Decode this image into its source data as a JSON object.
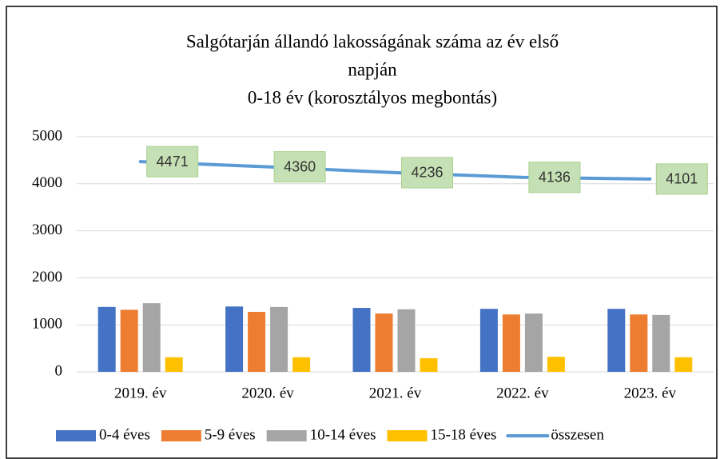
{
  "chart_data": {
    "type": "bar_line",
    "title": [
      "Salgótarján állandó lakosságának száma az év első",
      "napján",
      "0-18 év (korosztályos megbontás)"
    ],
    "categories": [
      "2019. év",
      "2020. év",
      "2021. év",
      "2022. év",
      "2023. év"
    ],
    "series": [
      {
        "name": "0-4 éves",
        "color": "#4472c4",
        "type": "bar",
        "values": [
          1380,
          1390,
          1360,
          1340,
          1340
        ]
      },
      {
        "name": "5-9 éves",
        "color": "#ed7d31",
        "type": "bar",
        "values": [
          1320,
          1275,
          1240,
          1220,
          1220
        ]
      },
      {
        "name": "10-14 éves",
        "color": "#a5a5a5",
        "type": "bar",
        "values": [
          1460,
          1380,
          1330,
          1240,
          1210
        ]
      },
      {
        "name": "15-18 éves",
        "color": "#ffc000",
        "type": "bar",
        "values": [
          310,
          310,
          290,
          320,
          310
        ]
      },
      {
        "name": "összesen",
        "color": "#5b9bd5",
        "type": "line",
        "values": [
          4471,
          4360,
          4236,
          4136,
          4101
        ]
      }
    ],
    "ylim": [
      0,
      5000
    ],
    "yticks": [
      0,
      1000,
      2000,
      3000,
      4000,
      5000
    ],
    "grid": true,
    "legend": "bottom"
  }
}
